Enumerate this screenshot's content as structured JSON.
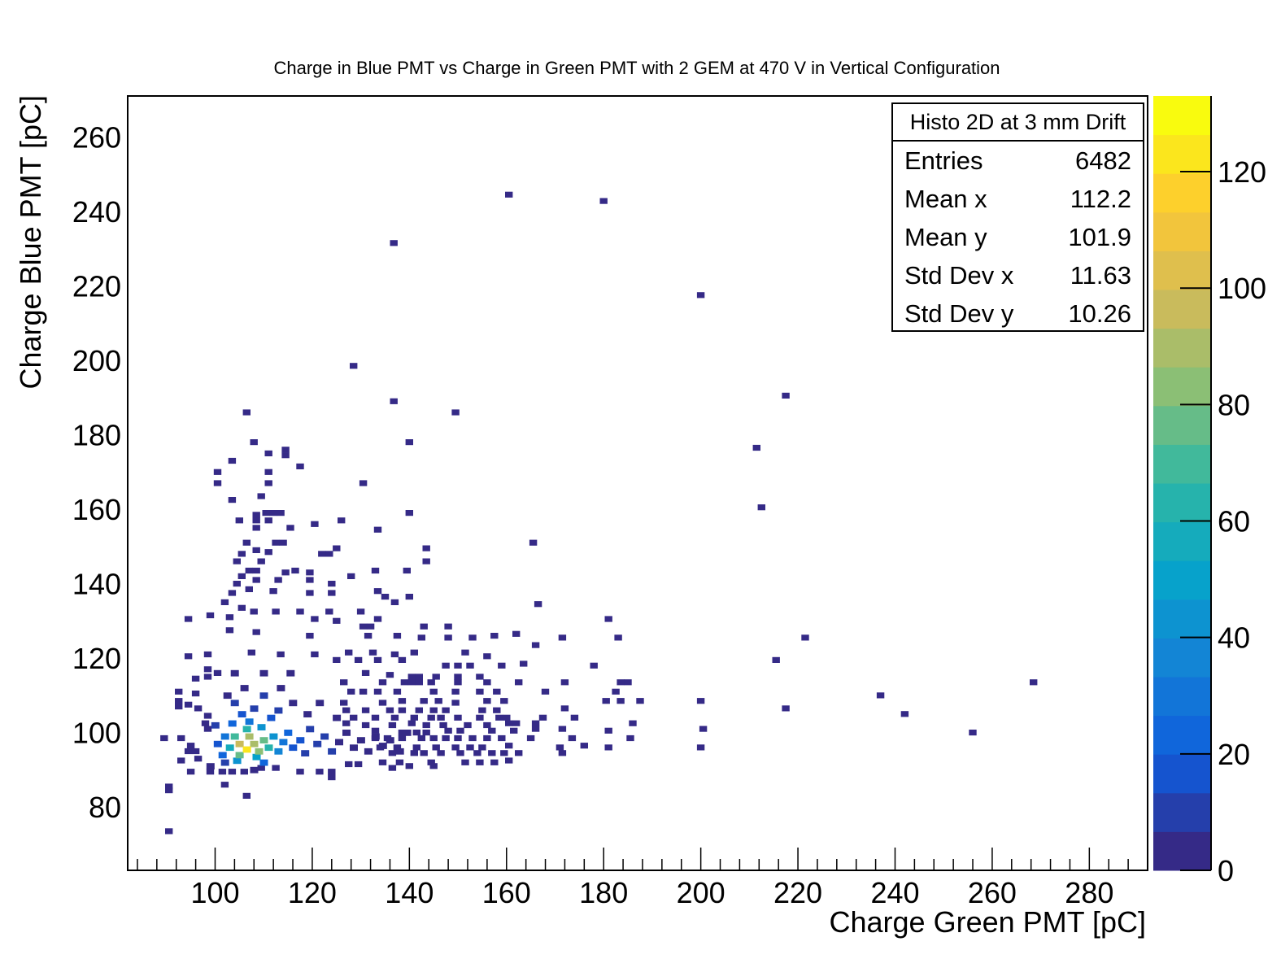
{
  "chart_data": {
    "type": "heatmap",
    "title": "Charge in Blue PMT vs Charge in Green PMT with 2 GEM at 470 V in Vertical Configuration",
    "xlabel": "Charge Green PMT [pC]",
    "ylabel": "Charge Blue PMT [pC]",
    "xlim": [
      82,
      292
    ],
    "ylim": [
      63,
      271
    ],
    "x_ticks": [
      100,
      120,
      140,
      160,
      180,
      200,
      220,
      240,
      260,
      280
    ],
    "y_ticks": [
      80,
      100,
      120,
      140,
      160,
      180,
      200,
      220,
      240,
      260
    ],
    "bin_size": [
      1.58,
      1.58
    ],
    "colorbar": {
      "range": [
        0,
        133
      ],
      "ticks": [
        0,
        20,
        40,
        60,
        80,
        100,
        120
      ],
      "levels": 20,
      "colormap": "parula",
      "colors": [
        "#352a87",
        "#0f5cdd",
        "#1481d6",
        "#06a4ca",
        "#2eb7a4",
        "#87bf77",
        "#d1bb59",
        "#fec832",
        "#f9fb0e"
      ]
    },
    "bins": [
      [
        106.5,
        95.5,
        125
      ],
      [
        105,
        97,
        98
      ],
      [
        108,
        97,
        92
      ],
      [
        107,
        99,
        88
      ],
      [
        109,
        95,
        82
      ],
      [
        105,
        94,
        78
      ],
      [
        110,
        98,
        75
      ],
      [
        104,
        99,
        68
      ],
      [
        106.5,
        101,
        64
      ],
      [
        111,
        96,
        60
      ],
      [
        103,
        96,
        55
      ],
      [
        108.5,
        93.5,
        52
      ],
      [
        112,
        99,
        45
      ],
      [
        104.5,
        92.5,
        40
      ],
      [
        109.5,
        101.5,
        40
      ],
      [
        113,
        95,
        36
      ],
      [
        102,
        99,
        32
      ],
      [
        107,
        103,
        30
      ],
      [
        114,
        97.5,
        28
      ],
      [
        101.5,
        94,
        26
      ],
      [
        110,
        92,
        25
      ],
      [
        115,
        100,
        22
      ],
      [
        103.5,
        102.5,
        22
      ],
      [
        100.5,
        97,
        18
      ],
      [
        116,
        96,
        17
      ],
      [
        105.5,
        105,
        17
      ],
      [
        111.5,
        104,
        16
      ],
      [
        117.5,
        98,
        14
      ],
      [
        102,
        92,
        13
      ],
      [
        108,
        106.5,
        12
      ],
      [
        118.5,
        94.5,
        11
      ],
      [
        119.5,
        101,
        10
      ],
      [
        121,
        97,
        9
      ],
      [
        113,
        106,
        9
      ],
      [
        104,
        108,
        8
      ],
      [
        100,
        102,
        8
      ],
      [
        122.5,
        99,
        8
      ],
      [
        124,
        95,
        7
      ],
      [
        110,
        110,
        7
      ],
      [
        116,
        108,
        6
      ],
      [
        125.5,
        97.5,
        6
      ],
      [
        127,
        100,
        5
      ],
      [
        128.5,
        96,
        5
      ],
      [
        106,
        112,
        5
      ],
      [
        113.5,
        112,
        4
      ],
      [
        130,
        98,
        4
      ],
      [
        131.5,
        95,
        4
      ],
      [
        119,
        105,
        4
      ],
      [
        133,
        99,
        3
      ],
      [
        134.5,
        96.5,
        3
      ],
      [
        102.5,
        110,
        3
      ],
      [
        121.5,
        108,
        3
      ],
      [
        136,
        98,
        2
      ],
      [
        110,
        116,
        2
      ],
      [
        104,
        116,
        2
      ],
      [
        115.5,
        116,
        2
      ],
      [
        99,
        91,
        2
      ],
      [
        108,
        90,
        2
      ],
      [
        125,
        104,
        2
      ],
      [
        138,
        95,
        2
      ],
      [
        139.5,
        100,
        2
      ]
    ],
    "points": [
      [
        160.5,
        244.5
      ],
      [
        180,
        242.8
      ],
      [
        136.8,
        231.5
      ],
      [
        200,
        217.5
      ],
      [
        128.5,
        198.5
      ],
      [
        217.5,
        190.5
      ],
      [
        136.8,
        189
      ],
      [
        106.5,
        186
      ],
      [
        149.5,
        186
      ],
      [
        108,
        178
      ],
      [
        140,
        178
      ],
      [
        211.5,
        176.5
      ],
      [
        114.5,
        176
      ],
      [
        114.5,
        174.5
      ],
      [
        111,
        175
      ],
      [
        103.5,
        173
      ],
      [
        117.5,
        171.5
      ],
      [
        100.5,
        170
      ],
      [
        111,
        170
      ],
      [
        100.5,
        167
      ],
      [
        111,
        167
      ],
      [
        130.5,
        167
      ],
      [
        103.5,
        162.5
      ],
      [
        109.5,
        163.5
      ],
      [
        212.5,
        160.5
      ],
      [
        108.5,
        158.5
      ],
      [
        110.5,
        159
      ],
      [
        112,
        159
      ],
      [
        113.5,
        159
      ],
      [
        140,
        159
      ],
      [
        105,
        157
      ],
      [
        108.5,
        157
      ],
      [
        111,
        157
      ],
      [
        126,
        157
      ],
      [
        108.5,
        155
      ],
      [
        115.5,
        155
      ],
      [
        120.5,
        156
      ],
      [
        133.5,
        154.5
      ],
      [
        106.5,
        151
      ],
      [
        112.5,
        151
      ],
      [
        114,
        151
      ],
      [
        165.5,
        151
      ],
      [
        105.5,
        148
      ],
      [
        108.5,
        149
      ],
      [
        111,
        148.5
      ],
      [
        122,
        148
      ],
      [
        123.5,
        148
      ],
      [
        125,
        149.5
      ],
      [
        143.5,
        149.5
      ],
      [
        104.5,
        146
      ],
      [
        109.5,
        146
      ],
      [
        143.5,
        146
      ],
      [
        105.5,
        142
      ],
      [
        107,
        143.5
      ],
      [
        108.5,
        143.5
      ],
      [
        114.5,
        143
      ],
      [
        116.5,
        143.5
      ],
      [
        119.5,
        143
      ],
      [
        133,
        143.5
      ],
      [
        139.5,
        143.5
      ],
      [
        104.5,
        140
      ],
      [
        108.5,
        141
      ],
      [
        113,
        141
      ],
      [
        119.5,
        141
      ],
      [
        124,
        140
      ],
      [
        128,
        142
      ],
      [
        103.5,
        137.5
      ],
      [
        107,
        138.5
      ],
      [
        112,
        138
      ],
      [
        119.5,
        137.5
      ],
      [
        124,
        137.5
      ],
      [
        133.5,
        138
      ],
      [
        135,
        136.5
      ],
      [
        140,
        136.5
      ],
      [
        102,
        135
      ],
      [
        137,
        135
      ],
      [
        166.5,
        134.5
      ],
      [
        105.5,
        133.5
      ],
      [
        108,
        132.5
      ],
      [
        112.5,
        132.5
      ],
      [
        117.5,
        132.5
      ],
      [
        123.5,
        132.5
      ],
      [
        130,
        132.5
      ],
      [
        94.5,
        130.5
      ],
      [
        99,
        131.5
      ],
      [
        103,
        131
      ],
      [
        120.5,
        130.5
      ],
      [
        125,
        130
      ],
      [
        133.5,
        130.5
      ],
      [
        181,
        130.5
      ],
      [
        130.5,
        128.5
      ],
      [
        132,
        128.5
      ],
      [
        143,
        128.5
      ],
      [
        148,
        128.5
      ],
      [
        103,
        127.5
      ],
      [
        108.5,
        127
      ],
      [
        119.5,
        126
      ],
      [
        131.5,
        126
      ],
      [
        137.5,
        126
      ],
      [
        142.5,
        125.5
      ],
      [
        148,
        125.5
      ],
      [
        153,
        125.5
      ],
      [
        157.5,
        126
      ],
      [
        162,
        126.5
      ],
      [
        171.5,
        125.5
      ],
      [
        183,
        125.5
      ],
      [
        221.5,
        125.5
      ],
      [
        98.5,
        121
      ],
      [
        107.5,
        121.5
      ],
      [
        113.5,
        121
      ],
      [
        120.5,
        121
      ],
      [
        127.5,
        121.5
      ],
      [
        132.5,
        121.5
      ],
      [
        137,
        121
      ],
      [
        141,
        121.5
      ],
      [
        151.5,
        121.5
      ],
      [
        156,
        120.5
      ],
      [
        166,
        123.5
      ],
      [
        215.5,
        119.5
      ],
      [
        94.5,
        120.5
      ],
      [
        125,
        119.5
      ],
      [
        129.5,
        119.5
      ],
      [
        133.5,
        119.5
      ],
      [
        138.5,
        119.5
      ],
      [
        147.5,
        118
      ],
      [
        150,
        118
      ],
      [
        152.5,
        118
      ],
      [
        159,
        118
      ],
      [
        163.5,
        118.5
      ],
      [
        178,
        118
      ],
      [
        98.5,
        117
      ],
      [
        100.5,
        116
      ],
      [
        131,
        116
      ],
      [
        136,
        115.5
      ],
      [
        140.5,
        115
      ],
      [
        142,
        115
      ],
      [
        145.5,
        115
      ],
      [
        150,
        115
      ],
      [
        154.5,
        115
      ],
      [
        96,
        114.5
      ],
      [
        98.5,
        115
      ],
      [
        126.5,
        113.5
      ],
      [
        134.5,
        113.5
      ],
      [
        139,
        113.5
      ],
      [
        140.5,
        113.5
      ],
      [
        142,
        113.5
      ],
      [
        144.5,
        113.5
      ],
      [
        150,
        113.5
      ],
      [
        156,
        113.5
      ],
      [
        162.5,
        113.5
      ],
      [
        172,
        113.5
      ],
      [
        183.5,
        113.5
      ],
      [
        185,
        113.5
      ],
      [
        268.5,
        113.5
      ],
      [
        92.5,
        111
      ],
      [
        96,
        110.5
      ],
      [
        128,
        111
      ],
      [
        130.5,
        111
      ],
      [
        133.5,
        111
      ],
      [
        137.5,
        111
      ],
      [
        145,
        111
      ],
      [
        149.5,
        111
      ],
      [
        154.5,
        111
      ],
      [
        158,
        111
      ],
      [
        168,
        111
      ],
      [
        182.5,
        111
      ],
      [
        237,
        110
      ],
      [
        92.5,
        108.5
      ],
      [
        94.5,
        107.5
      ],
      [
        126.5,
        108
      ],
      [
        134.5,
        108
      ],
      [
        138.5,
        108.5
      ],
      [
        143,
        108.5
      ],
      [
        146,
        108.5
      ],
      [
        149.5,
        108
      ],
      [
        156,
        108.5
      ],
      [
        159.5,
        108.5
      ],
      [
        180.5,
        108.5
      ],
      [
        183.5,
        108.5
      ],
      [
        187.5,
        108.5
      ],
      [
        200,
        108.5
      ],
      [
        92.5,
        107
      ],
      [
        96.5,
        106.5
      ],
      [
        127,
        106
      ],
      [
        131,
        106
      ],
      [
        136,
        106
      ],
      [
        138.5,
        106
      ],
      [
        142,
        106
      ],
      [
        145,
        106
      ],
      [
        147.5,
        106
      ],
      [
        155,
        106
      ],
      [
        158,
        106
      ],
      [
        172,
        106.5
      ],
      [
        217.5,
        106.5
      ],
      [
        98.5,
        104.5
      ],
      [
        128.5,
        104
      ],
      [
        133,
        104
      ],
      [
        137,
        104
      ],
      [
        141,
        104
      ],
      [
        144.5,
        104
      ],
      [
        146.5,
        104
      ],
      [
        150,
        104
      ],
      [
        154.5,
        104
      ],
      [
        158.5,
        104
      ],
      [
        160,
        104
      ],
      [
        167.5,
        104
      ],
      [
        174,
        104
      ],
      [
        242,
        105
      ],
      [
        98,
        102.5
      ],
      [
        127,
        102.5
      ],
      [
        131,
        102
      ],
      [
        136.5,
        102
      ],
      [
        140.5,
        102.5
      ],
      [
        143.5,
        102
      ],
      [
        147,
        102
      ],
      [
        152,
        102
      ],
      [
        156,
        102
      ],
      [
        160.5,
        102.5
      ],
      [
        162,
        102.5
      ],
      [
        166,
        102.5
      ],
      [
        186,
        102.5
      ],
      [
        200.5,
        101
      ],
      [
        98.5,
        101
      ],
      [
        133,
        100.5
      ],
      [
        138.5,
        100
      ],
      [
        141.5,
        100
      ],
      [
        143.5,
        100
      ],
      [
        148,
        100.5
      ],
      [
        150.5,
        100.5
      ],
      [
        157,
        100.5
      ],
      [
        161.5,
        100.5
      ],
      [
        166,
        101
      ],
      [
        171.5,
        101
      ],
      [
        181,
        100.5
      ],
      [
        256,
        100
      ],
      [
        89.5,
        98.5
      ],
      [
        93,
        98.5
      ],
      [
        133,
        98.5
      ],
      [
        135.5,
        98.5
      ],
      [
        138.5,
        98.5
      ],
      [
        142.5,
        98.5
      ],
      [
        145,
        98.5
      ],
      [
        147.5,
        98.5
      ],
      [
        150,
        98.5
      ],
      [
        153,
        98.5
      ],
      [
        156,
        98.5
      ],
      [
        159,
        98.5
      ],
      [
        165,
        98.5
      ],
      [
        173.5,
        98.5
      ],
      [
        185.5,
        98.5
      ],
      [
        95,
        96.5
      ],
      [
        134,
        96
      ],
      [
        137.5,
        96
      ],
      [
        141.5,
        96
      ],
      [
        145.5,
        96
      ],
      [
        149.5,
        96
      ],
      [
        152.5,
        96
      ],
      [
        155,
        96
      ],
      [
        160.5,
        96.5
      ],
      [
        171,
        96
      ],
      [
        176,
        96.5
      ],
      [
        181,
        96
      ],
      [
        200,
        96
      ],
      [
        94.5,
        95
      ],
      [
        96,
        95
      ],
      [
        136.5,
        94.5
      ],
      [
        141,
        94.5
      ],
      [
        143,
        94.5
      ],
      [
        146.5,
        94.5
      ],
      [
        150.5,
        94.5
      ],
      [
        154,
        94.5
      ],
      [
        157,
        94.5
      ],
      [
        159.5,
        94.5
      ],
      [
        162.5,
        94.5
      ],
      [
        171.5,
        94.5
      ],
      [
        93,
        92.5
      ],
      [
        96.5,
        93
      ],
      [
        134.5,
        92
      ],
      [
        138,
        92
      ],
      [
        144.5,
        92
      ],
      [
        151.5,
        92
      ],
      [
        154.5,
        92
      ],
      [
        157.5,
        92
      ],
      [
        160.5,
        92.5
      ],
      [
        95,
        89.5
      ],
      [
        99,
        89.5
      ],
      [
        101.5,
        89.5
      ],
      [
        103.5,
        89.5
      ],
      [
        106,
        89.5
      ],
      [
        109.5,
        90.5
      ],
      [
        112.5,
        90.5
      ],
      [
        117.5,
        89.5
      ],
      [
        121.5,
        89.5
      ],
      [
        124,
        89.5
      ],
      [
        127.5,
        91.5
      ],
      [
        129.5,
        91.5
      ],
      [
        136.5,
        90.5
      ],
      [
        140,
        91
      ],
      [
        145,
        91
      ],
      [
        124,
        88
      ],
      [
        102,
        86
      ],
      [
        90.5,
        85.5
      ],
      [
        90.5,
        84.5
      ],
      [
        106.5,
        83
      ],
      [
        90.5,
        73.5
      ]
    ]
  },
  "stats": {
    "title": "Histo 2D at 3 mm Drift",
    "rows": [
      {
        "label": "Entries",
        "value": "6482"
      },
      {
        "label": "Mean x",
        "value": "112.2"
      },
      {
        "label": "Mean y",
        "value": "101.9"
      },
      {
        "label": "Std Dev x",
        "value": "11.63"
      },
      {
        "label": "Std Dev y",
        "value": "10.26"
      }
    ]
  }
}
